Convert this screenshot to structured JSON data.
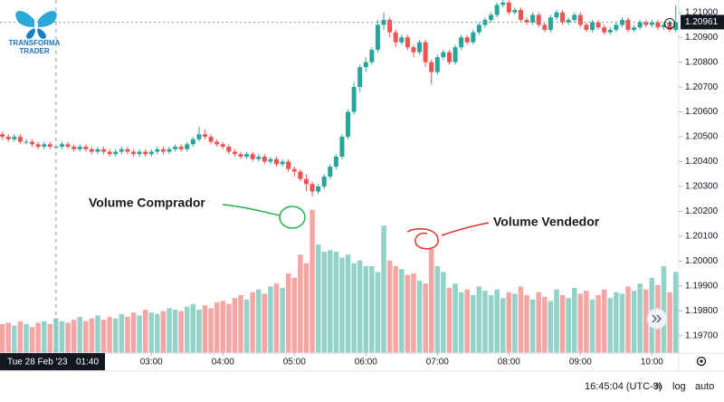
{
  "chart_data": {
    "type": "candlestick",
    "logo": {
      "line1": "TRANSFORMA",
      "line2": "TRADER"
    },
    "x": [
      55,
      60,
      65,
      70,
      75,
      80,
      85,
      90,
      95,
      100,
      105,
      110,
      115,
      120,
      125,
      130,
      135,
      140,
      145,
      150,
      155,
      160,
      165,
      170,
      175,
      180,
      185,
      190,
      195,
      200,
      205,
      210,
      215,
      220,
      225,
      230,
      235,
      240,
      245,
      250,
      255,
      260,
      265,
      270,
      275,
      280,
      285,
      290,
      295,
      300,
      305,
      310,
      315,
      320,
      325,
      330,
      335,
      340,
      345,
      350,
      355,
      360,
      365,
      370,
      375,
      380,
      385,
      390,
      395,
      400,
      405,
      410,
      415,
      420,
      425,
      430,
      435,
      440,
      445,
      450,
      455,
      460,
      465,
      470,
      475,
      480,
      485,
      490,
      495,
      500,
      505,
      510,
      515,
      520,
      525,
      530,
      535,
      540,
      545,
      550,
      555,
      560,
      565,
      570,
      575,
      580,
      585,
      590,
      595,
      600,
      605,
      610,
      615,
      620
    ],
    "open": [
      1.2051,
      1.205,
      1.2049,
      1.205,
      1.2048,
      1.2048,
      1.2047,
      1.2046,
      1.2047,
      1.2046,
      1.2046,
      1.2047,
      1.2046,
      1.2045,
      1.2046,
      1.2045,
      1.2044,
      1.2045,
      1.2044,
      1.2043,
      1.2044,
      1.2045,
      1.2044,
      1.2043,
      1.2044,
      1.2043,
      1.2044,
      1.2045,
      1.2044,
      1.2045,
      1.2046,
      1.2045,
      1.2047,
      1.2049,
      1.2051,
      1.205,
      1.2048,
      1.2047,
      1.2046,
      1.2044,
      1.2043,
      1.2042,
      1.2043,
      1.2041,
      1.2042,
      1.204,
      1.2041,
      1.2039,
      1.204,
      1.2037,
      1.2036,
      1.2033,
      1.2031,
      1.2028,
      1.203,
      1.2034,
      1.2038,
      1.2042,
      1.205,
      1.206,
      1.207,
      1.2078,
      1.208,
      1.2085,
      1.2095,
      1.2097,
      1.2092,
      1.2088,
      1.209,
      1.2086,
      1.2084,
      1.2088,
      1.208,
      1.2076,
      1.2082,
      1.2084,
      1.208,
      1.2086,
      1.209,
      1.2088,
      1.2092,
      1.2095,
      1.2097,
      1.2099,
      1.2103,
      1.2104,
      1.21,
      1.2101,
      1.2097,
      1.2096,
      1.2099,
      1.2095,
      1.2093,
      1.2098,
      1.21,
      1.2096,
      1.2097,
      1.2099,
      1.2095,
      1.2093,
      1.2096,
      1.2094,
      1.2092,
      1.2093,
      1.2095,
      1.2097,
      1.2093,
      1.2094,
      1.2096,
      1.2095,
      1.2096,
      1.2094,
      1.2095,
      1.2093
    ],
    "high": [
      1.2052,
      1.2051,
      1.2051,
      1.2051,
      1.2049,
      1.2049,
      1.2048,
      1.2048,
      1.2048,
      1.2047,
      1.2048,
      1.2048,
      1.2047,
      1.2047,
      1.2047,
      1.2046,
      1.2046,
      1.2046,
      1.2045,
      1.2045,
      1.2046,
      1.2046,
      1.2045,
      1.2045,
      1.2045,
      1.2045,
      1.2046,
      1.2046,
      1.2046,
      1.2047,
      1.2047,
      1.2048,
      1.205,
      1.2054,
      1.2053,
      1.2051,
      1.2049,
      1.2048,
      1.2047,
      1.2045,
      1.2044,
      1.2044,
      1.2044,
      1.2043,
      1.2043,
      1.2042,
      1.2042,
      1.2041,
      1.2041,
      1.2038,
      1.2037,
      1.2035,
      1.2032,
      1.2031,
      1.2035,
      1.2039,
      1.2043,
      1.2051,
      1.2061,
      1.2072,
      1.2079,
      1.2082,
      1.2086,
      1.2097,
      1.21,
      1.2098,
      1.2093,
      1.2091,
      1.2091,
      1.2087,
      1.2089,
      1.2089,
      1.2081,
      1.2083,
      1.2085,
      1.2085,
      1.2087,
      1.2091,
      1.2091,
      1.2093,
      1.2096,
      1.2098,
      1.21,
      1.2104,
      1.2107,
      1.2105,
      1.2102,
      1.2102,
      1.2098,
      1.21,
      1.21,
      1.2096,
      1.2099,
      1.2101,
      1.2101,
      1.2098,
      1.21,
      1.21,
      1.2096,
      1.2097,
      1.2097,
      1.2095,
      1.2094,
      1.2096,
      1.2098,
      1.2098,
      1.2095,
      1.2097,
      1.2097,
      1.2097,
      1.2097,
      1.2096,
      1.2096,
      1.2103
    ],
    "low": [
      1.2049,
      1.2048,
      1.2048,
      1.2047,
      1.2047,
      1.2046,
      1.2045,
      1.2045,
      1.2045,
      1.2045,
      1.2045,
      1.2045,
      1.2044,
      1.2044,
      1.2044,
      1.2043,
      1.2043,
      1.2043,
      1.2042,
      1.2042,
      1.2043,
      1.2043,
      1.2042,
      1.2042,
      1.2042,
      1.2042,
      1.2043,
      1.2043,
      1.2043,
      1.2044,
      1.2044,
      1.2044,
      1.2046,
      1.2048,
      1.2049,
      1.2047,
      1.2046,
      1.2045,
      1.2043,
      1.2042,
      1.2041,
      1.2041,
      1.204,
      1.204,
      1.2039,
      1.2039,
      1.2038,
      1.2038,
      1.2036,
      1.2034,
      1.2032,
      1.2028,
      1.2026,
      1.2027,
      1.2029,
      1.2033,
      1.2037,
      1.2041,
      1.2049,
      1.2059,
      1.2068,
      1.2076,
      1.2079,
      1.2084,
      1.2093,
      1.209,
      1.2086,
      1.2087,
      1.2085,
      1.2082,
      1.2083,
      1.2078,
      1.2071,
      1.2075,
      1.2081,
      1.2079,
      1.2079,
      1.2085,
      1.2087,
      1.2087,
      1.2091,
      1.2094,
      1.2096,
      1.2098,
      1.2102,
      1.2099,
      1.2099,
      1.2096,
      1.2095,
      1.2095,
      1.2094,
      1.2092,
      1.2092,
      1.2097,
      1.2095,
      1.2095,
      1.2096,
      1.2094,
      1.2092,
      1.2092,
      1.2093,
      1.2091,
      1.2091,
      1.2092,
      1.2094,
      1.2092,
      1.2092,
      1.2093,
      1.2094,
      1.2094,
      1.2093,
      1.2093,
      1.2092,
      1.2092
    ],
    "close": [
      1.205,
      1.2049,
      1.205,
      1.2048,
      1.2048,
      1.2047,
      1.2046,
      1.2047,
      1.2046,
      1.2046,
      1.2047,
      1.2046,
      1.2045,
      1.2046,
      1.2045,
      1.2044,
      1.2045,
      1.2044,
      1.2043,
      1.2044,
      1.2045,
      1.2044,
      1.2043,
      1.2044,
      1.2043,
      1.2044,
      1.2045,
      1.2044,
      1.2045,
      1.2046,
      1.2045,
      1.2047,
      1.2049,
      1.2051,
      1.205,
      1.2048,
      1.2047,
      1.2046,
      1.2044,
      1.2043,
      1.2042,
      1.2043,
      1.2041,
      1.2042,
      1.204,
      1.2041,
      1.2039,
      1.204,
      1.2037,
      1.2036,
      1.2033,
      1.2031,
      1.2028,
      1.203,
      1.2034,
      1.2038,
      1.2042,
      1.205,
      1.206,
      1.207,
      1.2078,
      1.208,
      1.2085,
      1.2095,
      1.2097,
      1.2092,
      1.2088,
      1.209,
      1.2086,
      1.2084,
      1.2088,
      1.208,
      1.2076,
      1.2082,
      1.2084,
      1.208,
      1.2086,
      1.209,
      1.2088,
      1.2092,
      1.2095,
      1.2097,
      1.2099,
      1.2103,
      1.2104,
      1.21,
      1.2101,
      1.2097,
      1.2096,
      1.2099,
      1.2095,
      1.2093,
      1.2098,
      1.21,
      1.2096,
      1.2097,
      1.2099,
      1.2095,
      1.2093,
      1.2096,
      1.2094,
      1.2092,
      1.2093,
      1.2095,
      1.2097,
      1.2093,
      1.2094,
      1.2096,
      1.2095,
      1.2096,
      1.2094,
      1.2095,
      1.2093,
      1.20961
    ],
    "volume": [
      20,
      21,
      19,
      22,
      20,
      18,
      21,
      22,
      20,
      24,
      22,
      21,
      23,
      25,
      22,
      24,
      26,
      23,
      25,
      24,
      27,
      25,
      28,
      26,
      30,
      28,
      27,
      29,
      31,
      30,
      29,
      32,
      34,
      30,
      33,
      31,
      35,
      36,
      34,
      38,
      40,
      37,
      42,
      44,
      41,
      46,
      48,
      45,
      55,
      52,
      68,
      62,
      99,
      75,
      70,
      71,
      70,
      66,
      68,
      62,
      64,
      60,
      60,
      56,
      88,
      64,
      60,
      58,
      54,
      55,
      50,
      48,
      72,
      60,
      56,
      45,
      48,
      42,
      44,
      40,
      46,
      43,
      40,
      44,
      38,
      42,
      41,
      46,
      40,
      37,
      42,
      39,
      36,
      44,
      40,
      38,
      45,
      41,
      43,
      37,
      40,
      44,
      38,
      42,
      41,
      46,
      43,
      48,
      44,
      52,
      47,
      60,
      42,
      56
    ],
    "up_color": "#26a69a",
    "down_color": "#ef5350",
    "volume_up_color": "#92d2c9",
    "volume_down_color": "#f5a6a4",
    "xlim": [
      53,
      621
    ],
    "xticks": [
      {
        "value": 180,
        "label": "03:00"
      },
      {
        "value": 240,
        "label": "04:00"
      },
      {
        "value": 300,
        "label": "05:00"
      },
      {
        "value": 360,
        "label": "06:00"
      },
      {
        "value": 420,
        "label": "07:00"
      },
      {
        "value": 480,
        "label": "08:00"
      },
      {
        "value": 540,
        "label": "09:00"
      },
      {
        "value": 600,
        "label": "10:00"
      }
    ],
    "ylim": [
      1.1963,
      1.2105
    ],
    "yticks": [
      {
        "value": 1.21,
        "label": "1.21000"
      },
      {
        "value": 1.209,
        "label": "1.20900"
      },
      {
        "value": 1.208,
        "label": "1.20800"
      },
      {
        "value": 1.207,
        "label": "1.20700"
      },
      {
        "value": 1.206,
        "label": "1.20600"
      },
      {
        "value": 1.205,
        "label": "1.20500"
      },
      {
        "value": 1.204,
        "label": "1.20400"
      },
      {
        "value": 1.203,
        "label": "1.20300"
      },
      {
        "value": 1.202,
        "label": "1.20200"
      },
      {
        "value": 1.201,
        "label": "1.20100"
      },
      {
        "value": 1.2,
        "label": "1.20000"
      },
      {
        "value": 1.199,
        "label": "1.19900"
      },
      {
        "value": 1.198,
        "label": "1.19800"
      },
      {
        "value": 1.197,
        "label": "1.19700"
      }
    ],
    "volume_lim": [
      0,
      100
    ],
    "grid": false,
    "price_line": {
      "value": 1.20961,
      "label": "1.20961"
    },
    "crosshair": {
      "x": 100,
      "date_label": "Tue 28 Feb '23",
      "time_label": "01:40"
    },
    "annotations": {
      "buy": "Volume Comprador",
      "sell": "Volume Vendedor"
    },
    "status_bar": {
      "clock": "16:45:04 (UTC-3)",
      "percent": "%",
      "log": "log",
      "auto": "auto"
    }
  }
}
